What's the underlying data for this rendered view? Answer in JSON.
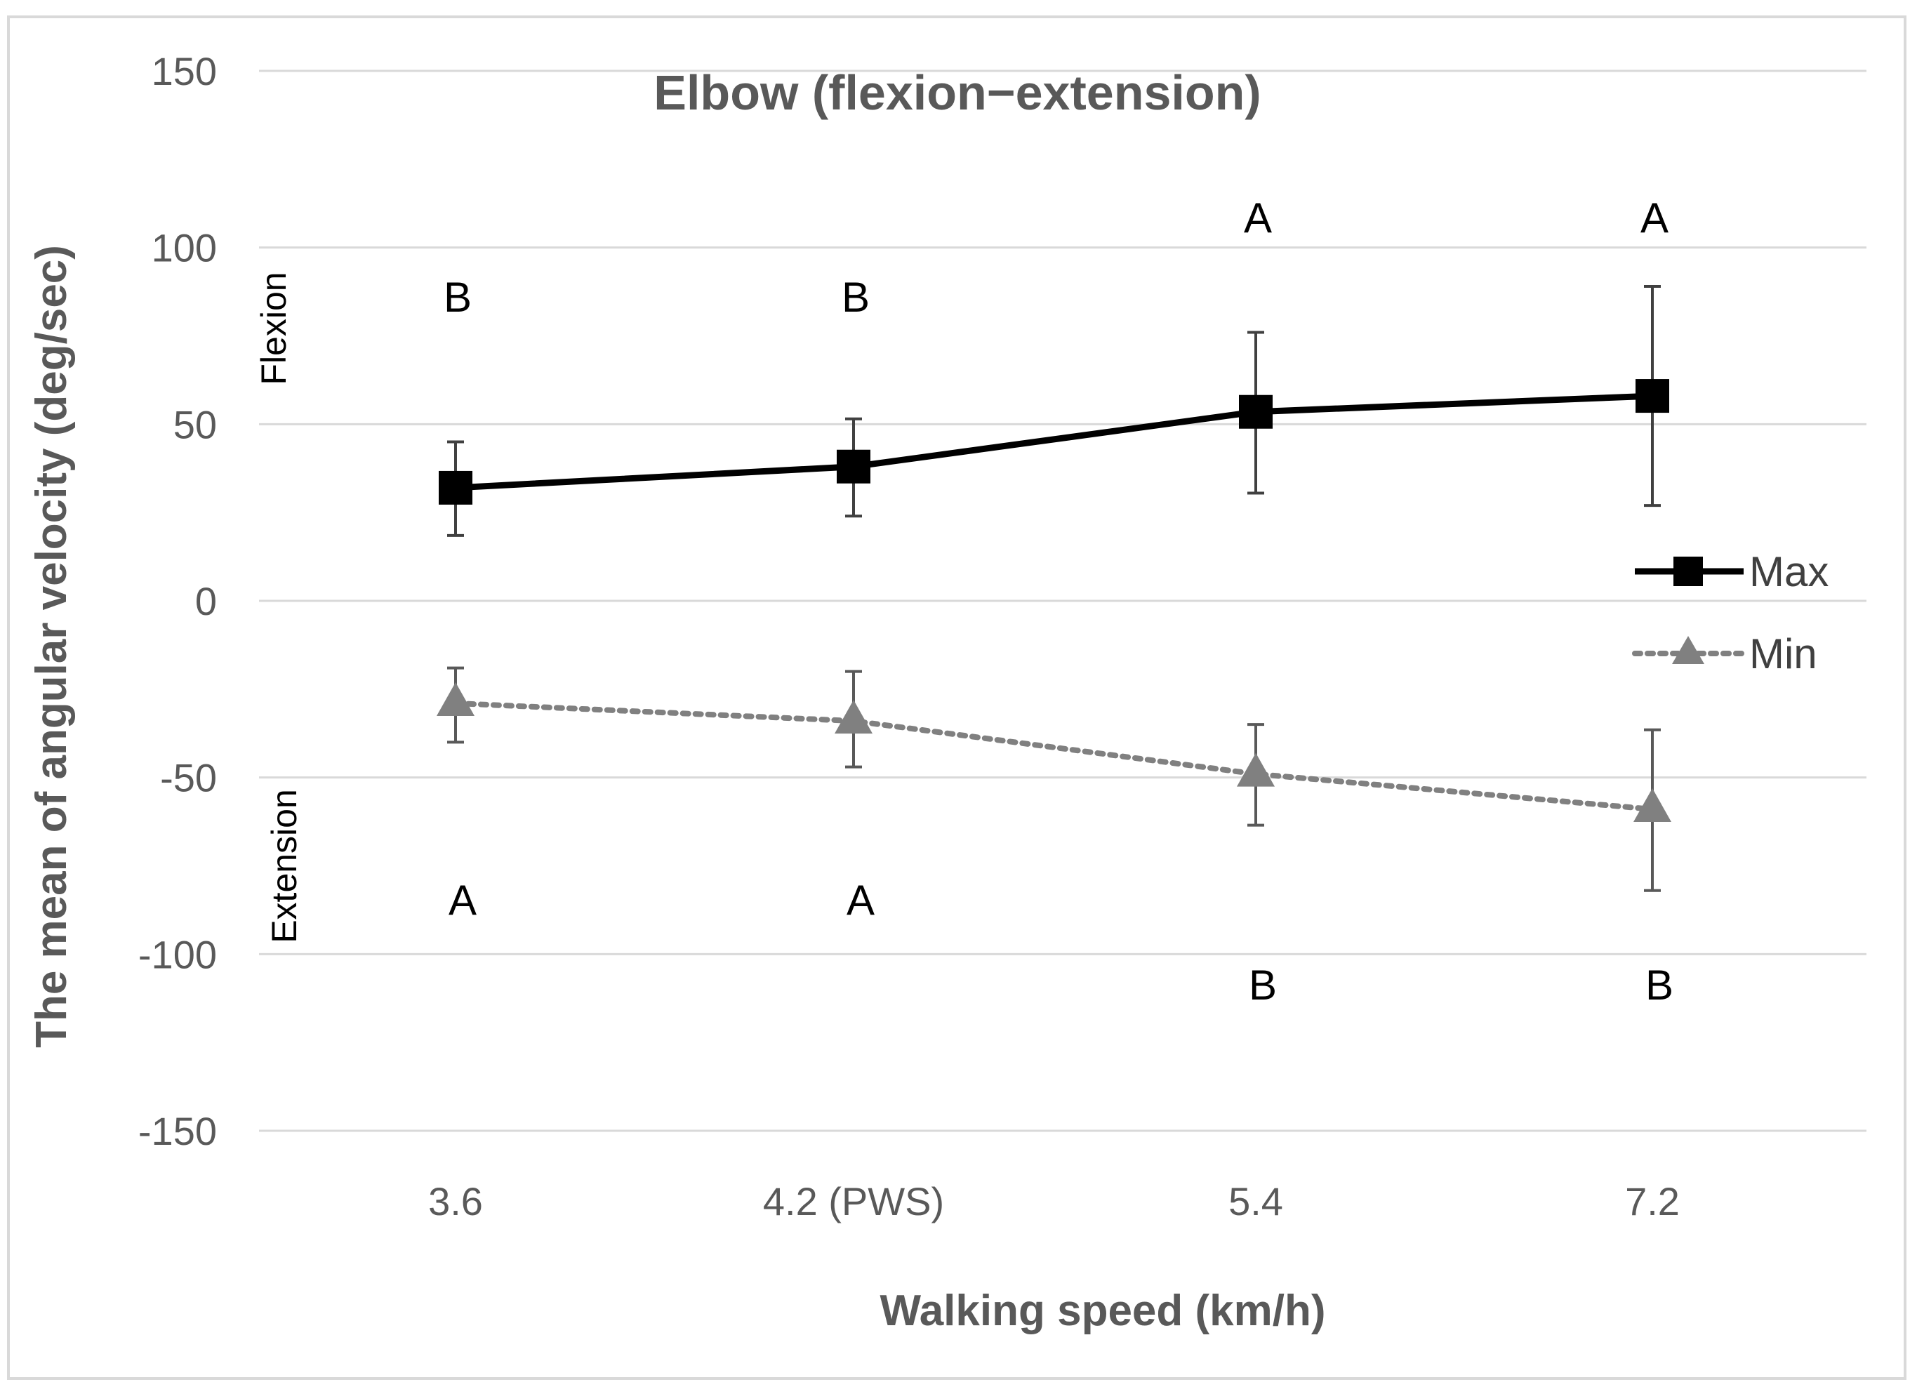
{
  "chart_data": {
    "type": "line",
    "title": "Elbow (flexion−extension)",
    "xlabel": "Walking speed (km/h)",
    "ylabel": "The mean of angular velocity (deg/sec)",
    "categories": [
      "3.6",
      "4.2 (PWS)",
      "5.4",
      "7.2"
    ],
    "ylim": [
      -150,
      150
    ],
    "yticks": [
      150,
      100,
      50,
      0,
      -50,
      -100,
      -150
    ],
    "grid": true,
    "legend_position": "right",
    "region_labels": {
      "upper": "Flexion",
      "lower": "Extension"
    },
    "series": [
      {
        "name": "Max",
        "color": "#000000",
        "line_style": "solid",
        "marker": "square",
        "values": [
          32,
          38,
          53.5,
          58
        ],
        "error_upper": [
          45,
          51.5,
          76,
          89
        ],
        "error_lower": [
          18.5,
          24,
          30.5,
          27
        ],
        "significance": [
          "B",
          "B",
          "A",
          "A"
        ]
      },
      {
        "name": "Min",
        "color": "#808080",
        "line_style": "dotted",
        "marker": "triangle",
        "values": [
          -29,
          -34,
          -49,
          -59
        ],
        "error_upper": [
          -19,
          -20,
          -35,
          -36.5
        ],
        "error_lower": [
          -40,
          -47,
          -63.5,
          -82
        ],
        "significance": [
          "A",
          "A",
          "B",
          "B"
        ]
      }
    ]
  }
}
